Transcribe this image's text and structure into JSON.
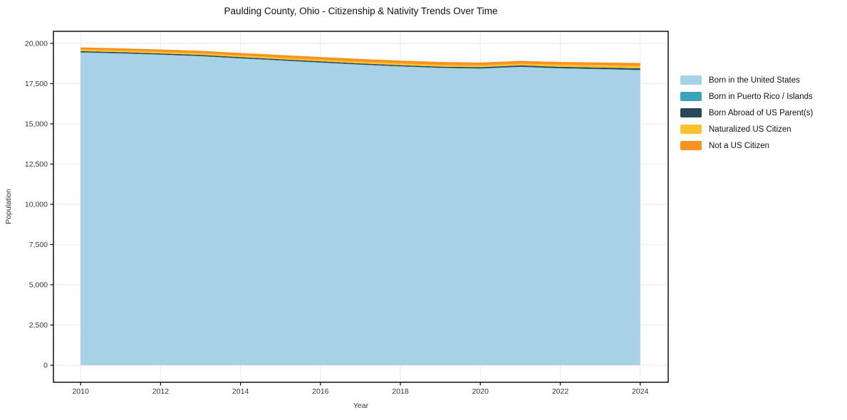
{
  "chart_data": {
    "type": "area",
    "stacked": true,
    "title": "Paulding County, Ohio - Citizenship & Nativity Trends Over Time",
    "xlabel": "Year",
    "ylabel": "Population",
    "x": [
      2010,
      2011,
      2012,
      2013,
      2014,
      2015,
      2016,
      2017,
      2018,
      2019,
      2020,
      2021,
      2022,
      2023,
      2024
    ],
    "series": [
      {
        "name": "Born in the United States",
        "color": "#a7d1e6",
        "values": [
          19430,
          19370,
          19290,
          19200,
          19060,
          18930,
          18800,
          18670,
          18560,
          18470,
          18430,
          18530,
          18440,
          18390,
          18330
        ]
      },
      {
        "name": "Born in Puerto Rico / Islands",
        "color": "#3da3bd",
        "values": [
          15,
          15,
          15,
          15,
          15,
          15,
          15,
          15,
          15,
          15,
          15,
          20,
          20,
          20,
          25
        ]
      },
      {
        "name": "Born Abroad of US Parent(s)",
        "color": "#26495c",
        "values": [
          70,
          70,
          70,
          70,
          70,
          70,
          70,
          70,
          70,
          70,
          75,
          80,
          85,
          90,
          95
        ]
      },
      {
        "name": "Naturalized US Citizen",
        "color": "#fcc22d",
        "values": [
          95,
          95,
          95,
          100,
          100,
          100,
          105,
          105,
          110,
          110,
          110,
          115,
          125,
          135,
          145
        ]
      },
      {
        "name": "Not a US Citizen",
        "color": "#f7941e",
        "values": [
          140,
          145,
          150,
          155,
          160,
          165,
          170,
          175,
          175,
          180,
          180,
          170,
          175,
          180,
          185
        ]
      }
    ],
    "xticks": [
      2010,
      2012,
      2014,
      2016,
      2018,
      2020,
      2022,
      2024
    ],
    "yticks": [
      0,
      2500,
      5000,
      7500,
      10000,
      12500,
      15000,
      17500,
      20000
    ],
    "xlim": [
      2009.32,
      2024.7
    ],
    "ylim": [
      -1060,
      20750
    ],
    "grid": true,
    "legend_position": "right",
    "grid_color": "#e9e9f0",
    "spine_color": "#000000",
    "tick_label_color": "#333333"
  }
}
